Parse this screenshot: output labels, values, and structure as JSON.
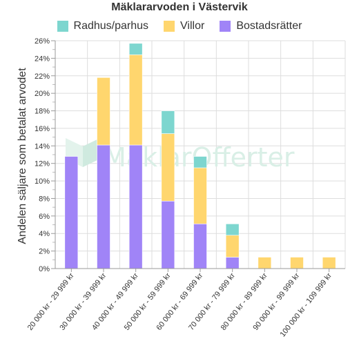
{
  "chart_data": {
    "type": "bar",
    "stacked": true,
    "title": "Mäklararvoden i Västervik",
    "ylabel": "Andelen säljare som betalat arvodet",
    "xlabel": "",
    "ylim": [
      0,
      26
    ],
    "yticks": [
      "0%",
      "2%",
      "4%",
      "6%",
      "8%",
      "10%",
      "12%",
      "14%",
      "16%",
      "18%",
      "20%",
      "22%",
      "24%",
      "26%"
    ],
    "grid": true,
    "legend_position": "top",
    "categories": [
      "20 000 kr - 29 999 kr",
      "30 000 kr - 39 999 kr",
      "40 000 kr - 49 999 kr",
      "50 000 kr - 59 999 kr",
      "60 000 kr - 69 999 kr",
      "70 000 kr - 79 999 kr",
      "80 000 kr - 89 999 kr",
      "90 000 kr - 99 999 kr",
      "100 000 kr - 109 999 kr"
    ],
    "series": [
      {
        "name": "Bostadsrätter",
        "color": "#a084f7",
        "values": [
          12.8,
          14.1,
          14.1,
          7.7,
          5.1,
          1.3,
          0,
          0,
          0
        ]
      },
      {
        "name": "Villor",
        "color": "#ffd66e",
        "values": [
          0,
          7.7,
          10.3,
          7.7,
          6.4,
          2.5,
          1.3,
          1.3,
          1.3
        ]
      },
      {
        "name": "Radhus/parhus",
        "color": "#7dd6cf",
        "values": [
          0,
          0,
          1.3,
          2.6,
          1.3,
          1.3,
          0,
          0,
          0
        ]
      }
    ],
    "legend_order": [
      "Radhus/parhus",
      "Villor",
      "Bostadsrätter"
    ],
    "watermark": "MäklarOfferter"
  }
}
